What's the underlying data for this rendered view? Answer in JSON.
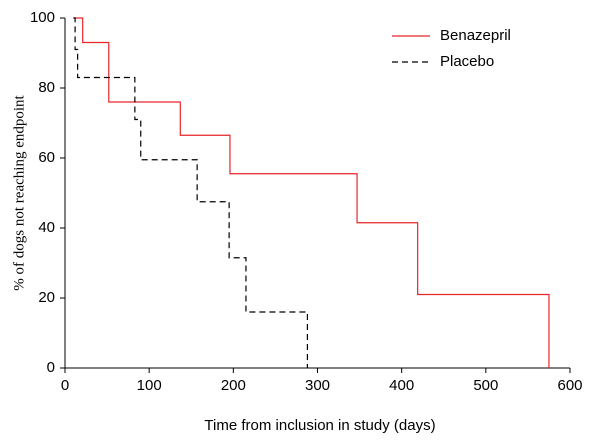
{
  "chart_data": {
    "type": "line",
    "step": "post",
    "x_label": "Time from inclusion in study (days)",
    "y_label": "% of dogs not reaching endpoint",
    "xlim": [
      0,
      600
    ],
    "xticks": [
      0,
      100,
      200,
      300,
      400,
      500,
      600
    ],
    "ylim": [
      0,
      100
    ],
    "yticks": [
      0,
      20,
      40,
      60,
      80,
      100
    ],
    "grid": false,
    "legend": "upper right",
    "series": [
      {
        "name": "Benazepril",
        "color": "#e8262a",
        "dash": "solid",
        "x": [
          10,
          21,
          52,
          137,
          196,
          347,
          419,
          575
        ],
        "values": [
          100,
          93,
          76,
          66.5,
          55.5,
          41.5,
          21,
          0
        ]
      },
      {
        "name": "Placebo",
        "color": "#000000",
        "dash": "dashed",
        "x": [
          10,
          12,
          15,
          83,
          90,
          157,
          195,
          215,
          288
        ],
        "values": [
          100,
          91,
          83,
          71,
          59.5,
          47.5,
          31.5,
          16,
          0
        ]
      }
    ]
  }
}
